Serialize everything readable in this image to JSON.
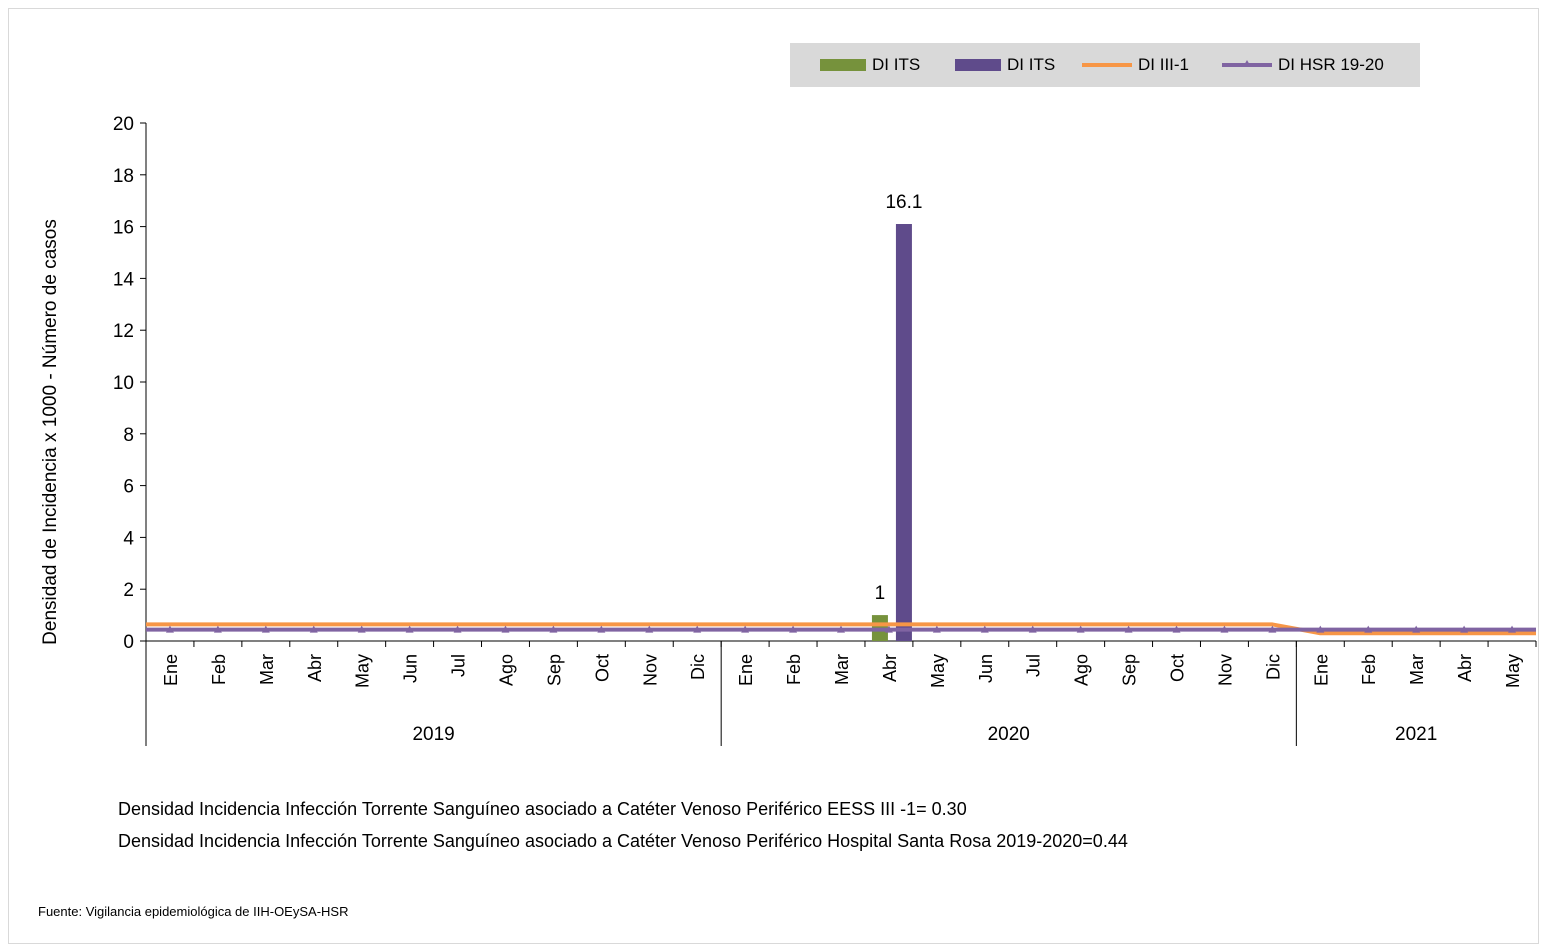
{
  "chart_data": {
    "type": "bar",
    "ylabel": "Densidad de Incidencia x 1000  -  Número de casos",
    "ylim": [
      0,
      20
    ],
    "yticks": [
      0,
      2,
      4,
      6,
      8,
      10,
      12,
      14,
      16,
      18,
      20
    ],
    "categories": [
      "Ene",
      "Feb",
      "Mar",
      "Abr",
      "May",
      "Jun",
      "Jul",
      "Ago",
      "Sep",
      "Oct",
      "Nov",
      "Dic",
      "Ene",
      "Feb",
      "Mar",
      "Abr",
      "May",
      "Jun",
      "Jul",
      "Ago",
      "Sep",
      "Oct",
      "Nov",
      "Dic",
      "Ene",
      "Feb",
      "Mar",
      "Abr",
      "May"
    ],
    "year_groups": [
      {
        "label": "2019",
        "start": 0,
        "count": 12
      },
      {
        "label": "2020",
        "start": 12,
        "count": 12
      },
      {
        "label": "2021",
        "start": 24,
        "count": 5
      }
    ],
    "legend_placement": "top-right",
    "series": [
      {
        "name": "DI ITS",
        "kind": "bar",
        "color": "#76923c",
        "values": [
          0,
          0,
          0,
          0,
          0,
          0,
          0,
          0,
          0,
          0,
          0,
          0,
          0,
          0,
          0,
          1,
          0,
          0,
          0,
          0,
          0,
          0,
          0,
          0,
          0,
          0,
          0,
          0,
          0
        ],
        "labels": {
          "15": "1"
        }
      },
      {
        "name": "DI ITS",
        "kind": "bar",
        "color": "#5f4b8b",
        "values": [
          0,
          0,
          0,
          0,
          0,
          0,
          0,
          0,
          0,
          0,
          0,
          0,
          0,
          0,
          0,
          16.1,
          0,
          0,
          0,
          0,
          0,
          0,
          0,
          0,
          0,
          0,
          0,
          0,
          0
        ],
        "labels": {
          "15": "16.1"
        }
      },
      {
        "name": "DI III-1",
        "kind": "line",
        "color": "#f79646",
        "values": [
          0.64,
          0.64,
          0.64,
          0.64,
          0.64,
          0.64,
          0.64,
          0.64,
          0.64,
          0.64,
          0.64,
          0.64,
          0.64,
          0.64,
          0.64,
          0.64,
          0.64,
          0.64,
          0.64,
          0.64,
          0.64,
          0.64,
          0.64,
          0.64,
          0.3,
          0.3,
          0.3,
          0.3,
          0.3
        ]
      },
      {
        "name": "DI HSR 19-20",
        "kind": "line-marker",
        "color": "#8064a2",
        "values": [
          0.44,
          0.44,
          0.44,
          0.44,
          0.44,
          0.44,
          0.44,
          0.44,
          0.44,
          0.44,
          0.44,
          0.44,
          0.44,
          0.44,
          0.44,
          0.44,
          0.44,
          0.44,
          0.44,
          0.44,
          0.44,
          0.44,
          0.44,
          0.44,
          0.44,
          0.44,
          0.44,
          0.44,
          0.44
        ]
      }
    ]
  },
  "notes": {
    "line1": "Densidad Incidencia Infección Torrente Sanguíneo asociado a Catéter Venoso Periférico  EESS III -1= 0.30",
    "line2": "Densidad Incidencia Infección Torrente Sanguíneo asociado a Catéter Venoso Periférico Hospital  Santa Rosa 2019-2020=0.44"
  },
  "source": "Fuente: Vigilancia epidemiológica de IIH-OEySA-HSR"
}
